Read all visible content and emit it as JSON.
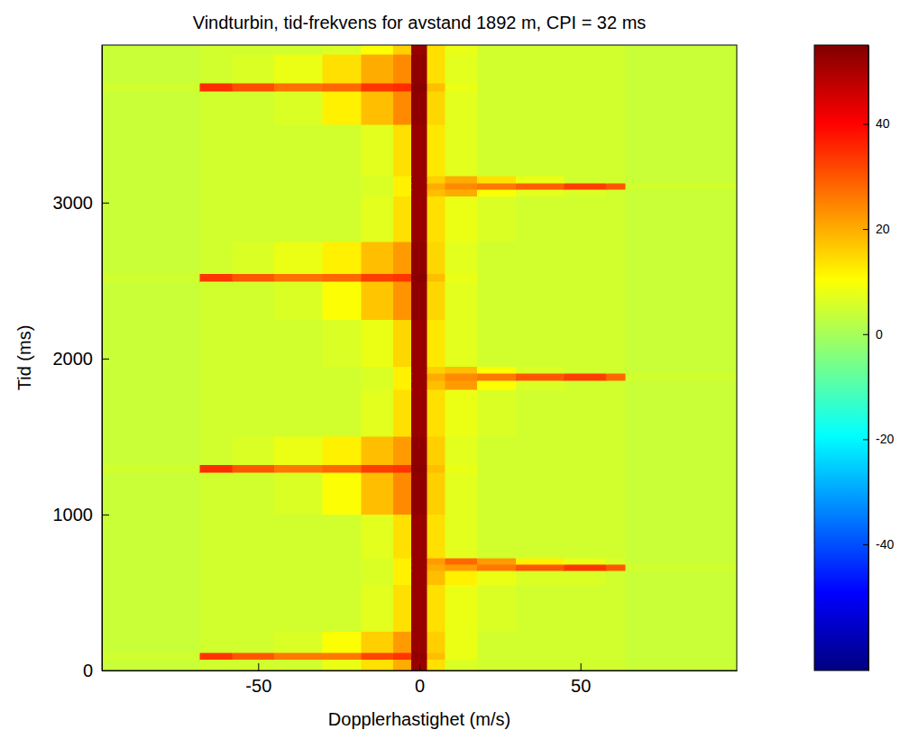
{
  "chart_data": {
    "type": "heatmap",
    "title": "Vindturbin, tid-frekvens for avstand 1892 m, CPI = 32 ms",
    "x_label": "Dopplerhastighet (m/s)",
    "y_label": "Tid (ms)",
    "xlim": [
      -98.5,
      98.5
    ],
    "ylim": [
      0,
      4010
    ],
    "xticks": [
      -50,
      0,
      50
    ],
    "yticks": [
      0,
      1000,
      2000,
      3000
    ],
    "x_edges": [
      -98.5,
      -68,
      -58,
      -45,
      -30,
      -18,
      -8,
      -2.5,
      2.5,
      8,
      18,
      30,
      45,
      58,
      64,
      98.5
    ],
    "y_edges": [
      0,
      70,
      115,
      250,
      550,
      640,
      680,
      720,
      1000,
      1270,
      1320,
      1500,
      1800,
      1860,
      1905,
      1950,
      2250,
      2495,
      2545,
      2750,
      3040,
      3085,
      3125,
      3170,
      3500,
      3715,
      3765,
      3950,
      4010
    ],
    "z": [
      [
        4,
        5,
        5,
        5,
        8,
        14,
        20,
        52,
        14,
        6,
        5,
        5,
        5,
        5,
        4
      ],
      [
        5,
        34,
        30,
        26,
        26,
        32,
        34,
        53,
        18,
        8,
        5,
        5,
        5,
        5,
        4
      ],
      [
        4,
        5,
        5,
        6,
        10,
        16,
        22,
        52,
        16,
        8,
        5,
        5,
        5,
        5,
        4
      ],
      [
        4,
        5,
        5,
        5,
        5,
        7,
        14,
        52,
        14,
        8,
        6,
        5,
        5,
        5,
        4
      ],
      [
        4,
        5,
        5,
        5,
        5,
        6,
        12,
        52,
        18,
        12,
        8,
        6,
        6,
        5,
        4
      ],
      [
        4,
        5,
        5,
        5,
        5,
        6,
        12,
        52,
        20,
        22,
        26,
        30,
        34,
        30,
        5
      ],
      [
        4,
        5,
        5,
        5,
        5,
        6,
        12,
        52,
        22,
        28,
        22,
        12,
        8,
        6,
        4
      ],
      [
        4,
        5,
        5,
        5,
        5,
        7,
        14,
        52,
        14,
        7,
        5,
        5,
        5,
        5,
        4
      ],
      [
        4,
        5,
        5,
        6,
        10,
        18,
        24,
        53,
        16,
        7,
        5,
        5,
        5,
        5,
        4
      ],
      [
        5,
        35,
        30,
        26,
        28,
        33,
        34,
        54,
        18,
        8,
        5,
        5,
        5,
        5,
        4
      ],
      [
        4,
        5,
        6,
        8,
        12,
        18,
        22,
        53,
        16,
        7,
        5,
        5,
        5,
        5,
        4
      ],
      [
        4,
        5,
        5,
        5,
        5,
        7,
        14,
        52,
        14,
        8,
        6,
        5,
        5,
        5,
        4
      ],
      [
        4,
        5,
        5,
        5,
        5,
        6,
        12,
        52,
        18,
        22,
        10,
        6,
        5,
        5,
        4
      ],
      [
        4,
        5,
        5,
        5,
        5,
        6,
        12,
        52,
        20,
        24,
        26,
        30,
        33,
        28,
        5
      ],
      [
        4,
        5,
        5,
        5,
        5,
        6,
        12,
        52,
        16,
        18,
        10,
        6,
        5,
        5,
        4
      ],
      [
        4,
        5,
        5,
        5,
        6,
        8,
        15,
        52,
        13,
        7,
        5,
        5,
        5,
        5,
        4
      ],
      [
        4,
        5,
        5,
        6,
        10,
        17,
        23,
        53,
        15,
        7,
        5,
        5,
        5,
        5,
        4
      ],
      [
        5,
        34,
        30,
        27,
        28,
        33,
        34,
        54,
        18,
        8,
        5,
        5,
        5,
        5,
        4
      ],
      [
        4,
        5,
        6,
        8,
        12,
        18,
        22,
        53,
        15,
        7,
        5,
        5,
        5,
        5,
        4
      ],
      [
        4,
        5,
        5,
        5,
        5,
        7,
        14,
        52,
        14,
        8,
        6,
        5,
        5,
        5,
        4
      ],
      [
        4,
        5,
        5,
        5,
        5,
        6,
        12,
        52,
        18,
        20,
        10,
        7,
        6,
        5,
        4
      ],
      [
        4,
        5,
        5,
        5,
        5,
        6,
        12,
        52,
        20,
        24,
        26,
        29,
        33,
        30,
        5
      ],
      [
        4,
        5,
        5,
        5,
        5,
        6,
        12,
        52,
        16,
        20,
        14,
        8,
        5,
        5,
        4
      ],
      [
        4,
        5,
        5,
        5,
        5,
        7,
        14,
        52,
        13,
        7,
        5,
        5,
        5,
        5,
        4
      ],
      [
        4,
        5,
        5,
        6,
        12,
        18,
        24,
        53,
        15,
        7,
        5,
        5,
        5,
        5,
        4
      ],
      [
        5,
        35,
        31,
        27,
        28,
        34,
        35,
        54,
        18,
        8,
        5,
        5,
        5,
        5,
        4
      ],
      [
        4,
        5,
        6,
        8,
        14,
        20,
        24,
        53,
        14,
        7,
        5,
        5,
        5,
        5,
        4
      ],
      [
        4,
        5,
        5,
        5,
        6,
        10,
        16,
        52,
        14,
        8,
        5,
        5,
        5,
        5,
        4
      ]
    ],
    "colorbar_range": [
      -64,
      55
    ],
    "colorbar_ticks": [
      -40,
      -20,
      0,
      20,
      40
    ]
  }
}
